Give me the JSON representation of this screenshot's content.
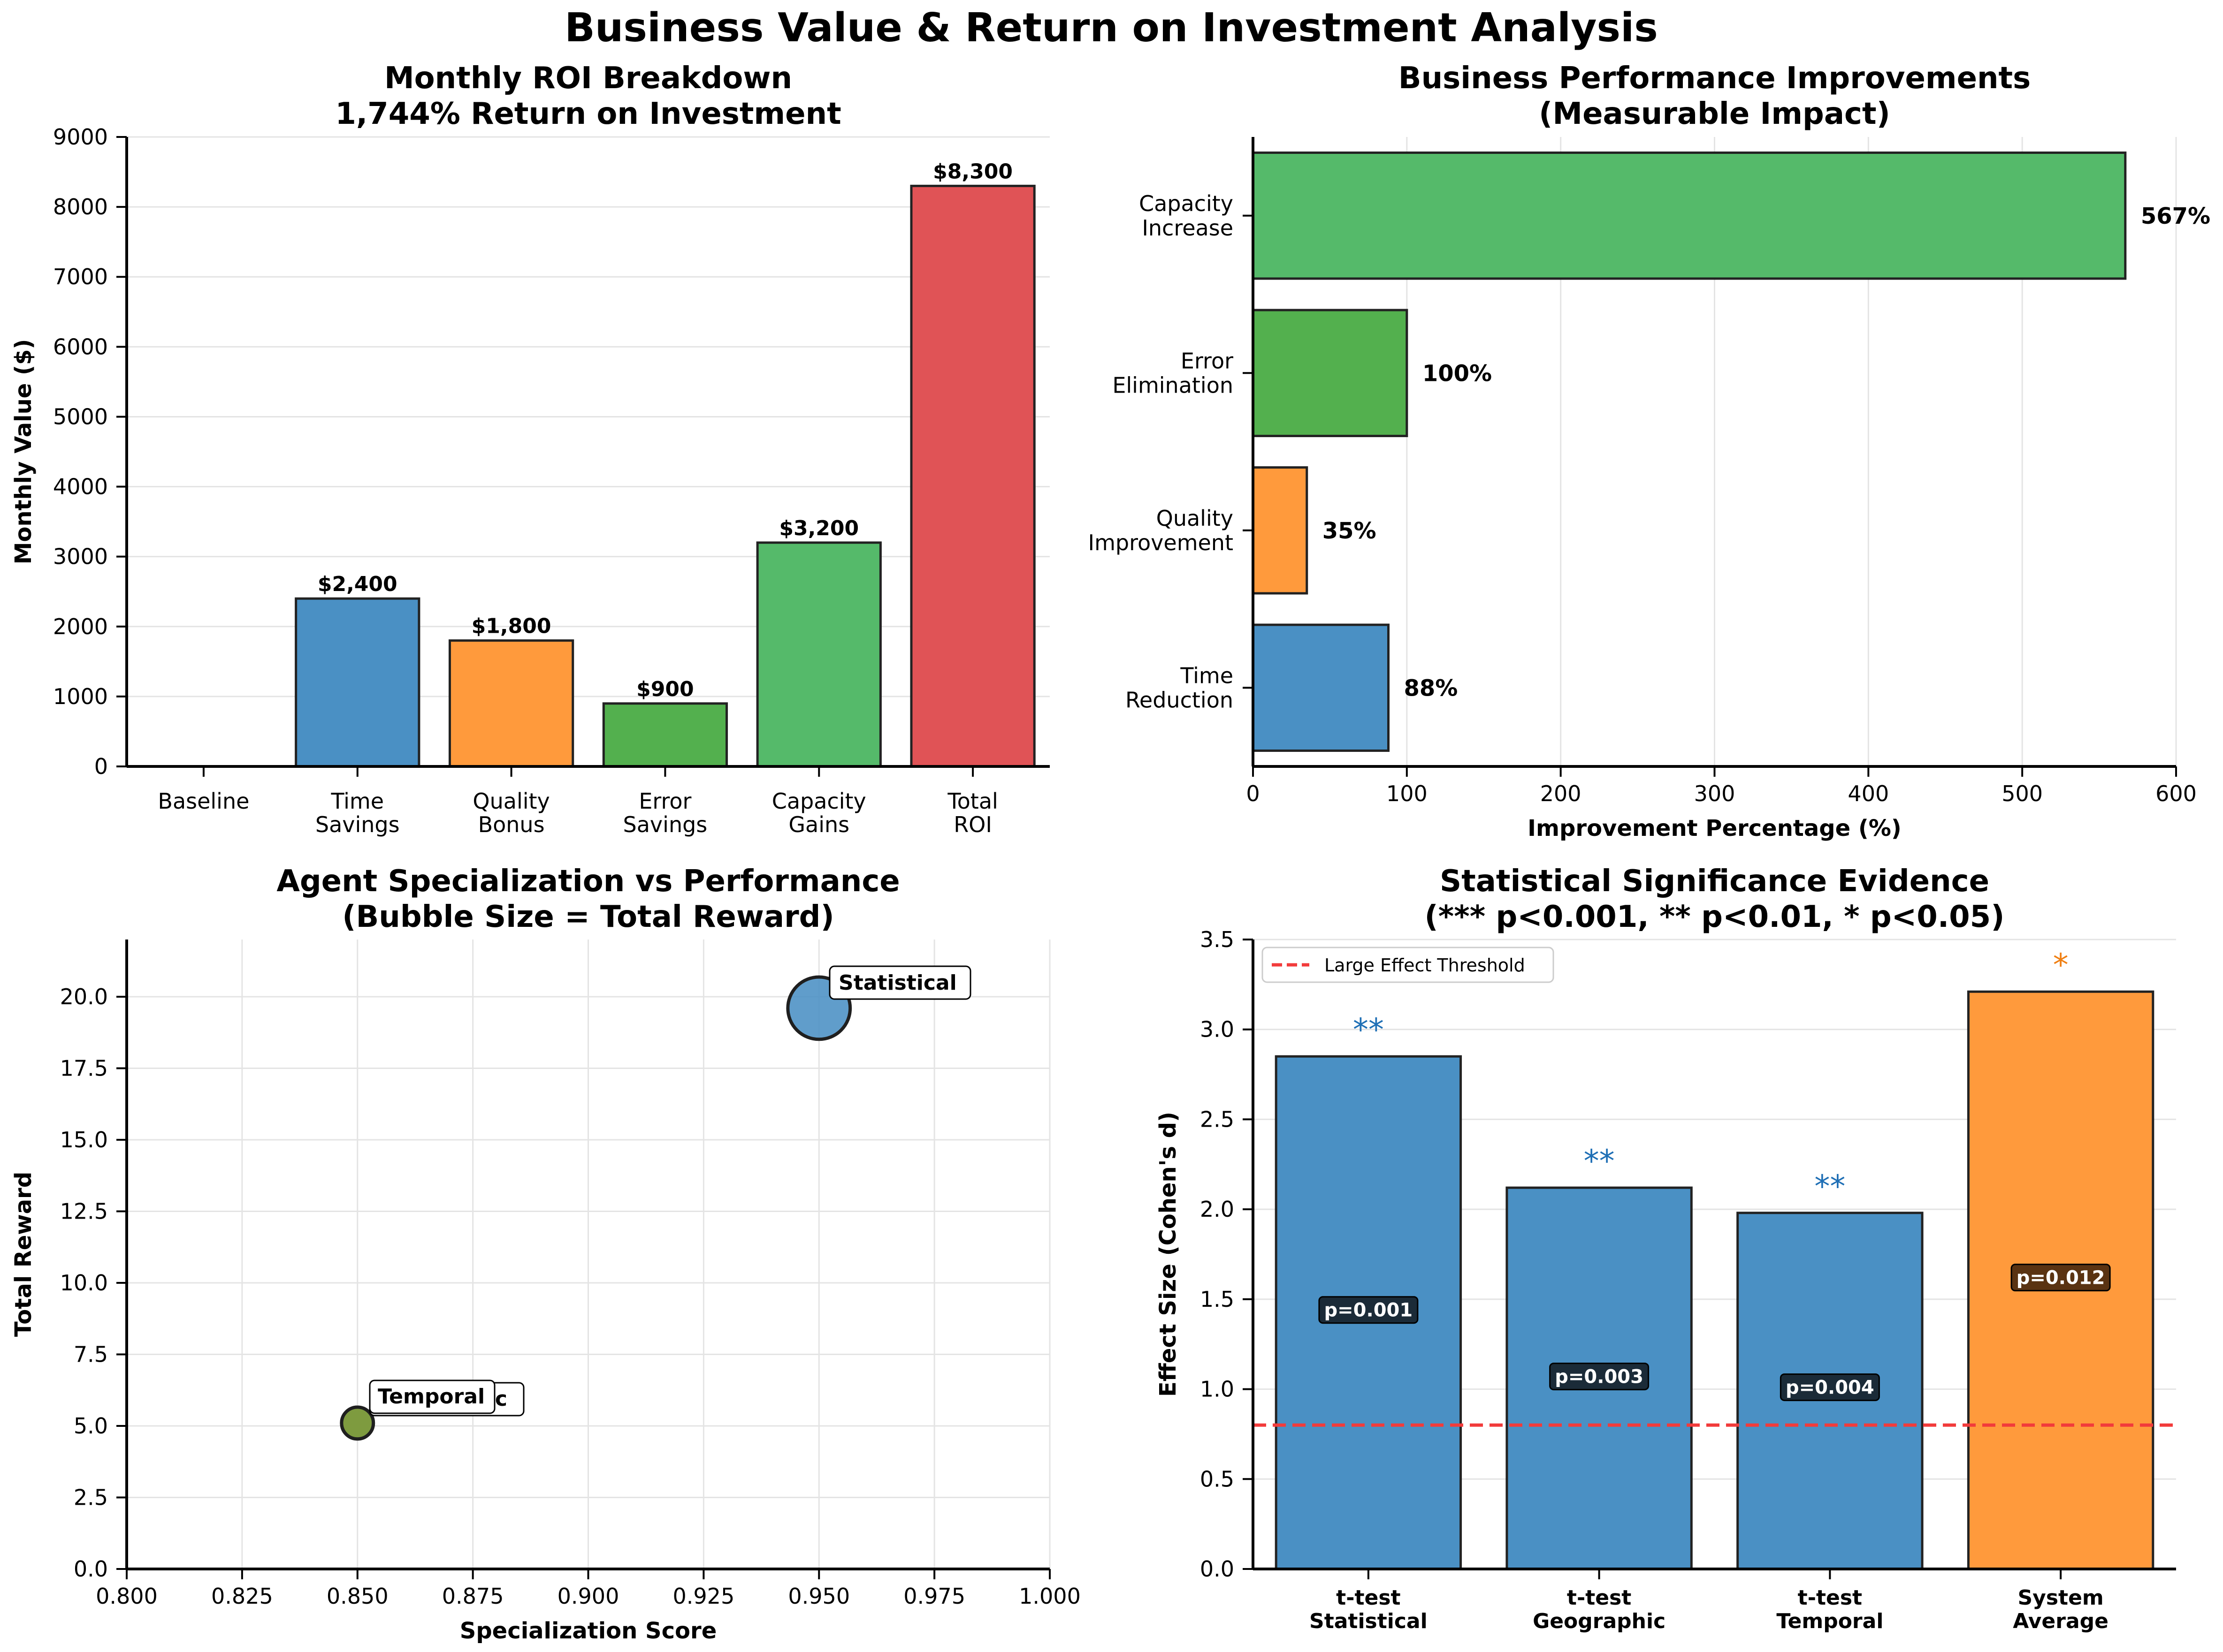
{
  "suptitle": "Business Value & Return on Investment Analysis",
  "colors": {
    "blue": "#4a90c4",
    "orange": "#ff9a3c",
    "green_dark": "#53b04e",
    "green": "#55ba6a",
    "red": "#e05356",
    "olive": "#6c9a3c",
    "threshold": "#f23b3b",
    "sig_blue": "#1f6fb5",
    "sig_orange": "#f07f12",
    "pbox": "#1b2b38",
    "pbox_orange": "#5a3312"
  },
  "chart_data": [
    {
      "type": "bar",
      "title": "Monthly ROI Breakdown\n1,744% Return on Investment",
      "xlabel": "",
      "ylabel": "Monthly Value ($)",
      "categories": [
        "Baseline",
        "Time\nSavings",
        "Quality\nBonus",
        "Error\nSavings",
        "Capacity\nGains",
        "Total\nROI"
      ],
      "values": [
        0,
        2400,
        1800,
        900,
        3200,
        8300
      ],
      "value_labels": [
        "",
        "$2,400",
        "$1,800",
        "$900",
        "$3,200",
        "$8,300"
      ],
      "bar_colors": [
        "#4a90c4",
        "#4a90c4",
        "#ff9a3c",
        "#53b04e",
        "#55ba6a",
        "#e05356"
      ],
      "ylim": [
        0,
        9000
      ],
      "yticks": [
        0,
        1000,
        2000,
        3000,
        4000,
        5000,
        6000,
        7000,
        8000,
        9000
      ],
      "grid": true
    },
    {
      "type": "hbar",
      "title": "Business Performance Improvements\n(Measurable Impact)",
      "xlabel": "Improvement Percentage (%)",
      "ylabel": "",
      "categories": [
        "Time\nReduction",
        "Quality\nImprovement",
        "Error\nElimination",
        "Capacity\nIncrease"
      ],
      "values": [
        88,
        35,
        100,
        567
      ],
      "value_labels": [
        "88%",
        "35%",
        "100%",
        "567%"
      ],
      "bar_colors": [
        "#4a90c4",
        "#ff9a3c",
        "#53b04e",
        "#55ba6a"
      ],
      "xlim": [
        0,
        600
      ],
      "xticks": [
        0,
        100,
        200,
        300,
        400,
        500,
        600
      ],
      "grid": true
    },
    {
      "type": "scatter",
      "title": "Agent Specialization vs Performance\n(Bubble Size = Total Reward)",
      "xlabel": "Specialization Score",
      "ylabel": "Total Reward",
      "points": [
        {
          "label": "Statistical",
          "x": 0.95,
          "y": 19.6,
          "color": "#4a90c4"
        },
        {
          "label": "Geographic",
          "x": 0.85,
          "y": 5.1,
          "color": "#ff9a3c"
        },
        {
          "label": "Temporal",
          "x": 0.85,
          "y": 5.1,
          "color": "#6c9a3c"
        }
      ],
      "visible_label_texts": [
        "Statistical",
        "Temporal",
        "ic"
      ],
      "xlim": [
        0.8,
        1.0
      ],
      "ylim": [
        0,
        22
      ],
      "xticks": [
        "0.800",
        "0.825",
        "0.850",
        "0.875",
        "0.900",
        "0.925",
        "0.950",
        "0.975",
        "1.000"
      ],
      "yticks": [
        "0.0",
        "2.5",
        "5.0",
        "7.5",
        "10.0",
        "12.5",
        "15.0",
        "17.5",
        "20.0"
      ],
      "grid": true
    },
    {
      "type": "bar",
      "title": "Statistical Significance Evidence\n(*** p<0.001, ** p<0.01, * p<0.05)",
      "xlabel": "",
      "ylabel": "Effect Size (Cohen's d)",
      "categories": [
        "t-test\nStatistical",
        "t-test\nGeographic",
        "t-test\nTemporal",
        "System\nAverage"
      ],
      "values": [
        2.85,
        2.12,
        1.98,
        3.21
      ],
      "significance": [
        "**",
        "**",
        "**",
        "*"
      ],
      "p_values": [
        "p=0.001",
        "p=0.003",
        "p=0.004",
        "p=0.012"
      ],
      "bar_colors": [
        "#4a90c4",
        "#4a90c4",
        "#4a90c4",
        "#ff9a3c"
      ],
      "threshold": 0.8,
      "legend": "Large Effect Threshold",
      "legend_position": "upper-left",
      "ylim": [
        0,
        3.5
      ],
      "yticks": [
        "0.0",
        "0.5",
        "1.0",
        "1.5",
        "2.0",
        "2.5",
        "3.0",
        "3.5"
      ],
      "grid": true
    }
  ]
}
